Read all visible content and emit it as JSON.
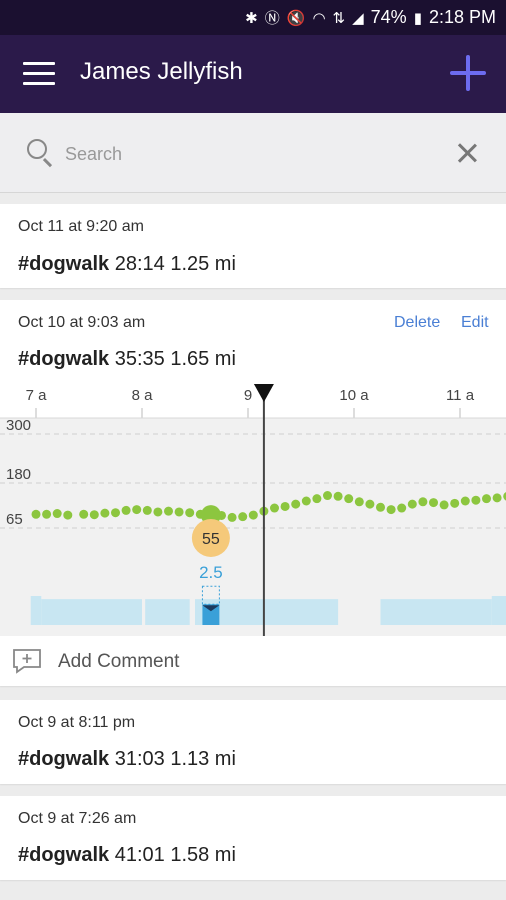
{
  "status_bar": {
    "icons": [
      "bluetooth-icon",
      "nfc-icon",
      "mute-icon",
      "wifi-icon",
      "lte-icon",
      "signal-icon"
    ],
    "battery": "74%",
    "time": "2:18 PM"
  },
  "app_bar": {
    "title": "James Jellyfish"
  },
  "search": {
    "placeholder": "Search"
  },
  "entries": [
    {
      "date": "Oct 11 at 9:20 am",
      "tag": "#dogwalk",
      "duration": "28:14",
      "distance": "1.25 mi"
    },
    {
      "date": "Oct 10 at 9:03 am",
      "tag": "#dogwalk",
      "duration": "35:35",
      "distance": "1.65 mi",
      "delete_label": "Delete",
      "edit_label": "Edit",
      "add_comment_label": "Add Comment"
    },
    {
      "date": "Oct 9 at 8:11 pm",
      "tag": "#dogwalk",
      "duration": "31:03",
      "distance": "1.13 mi"
    },
    {
      "date": "Oct 9 at 7:26 am",
      "tag": "#dogwalk",
      "duration": "41:01",
      "distance": "1.58 mi"
    }
  ],
  "chart_data": {
    "type": "scatter",
    "x_tick_labels": [
      "7 a",
      "8 a",
      "9",
      "10 a",
      "11 a"
    ],
    "y_tick_labels": [
      "300",
      "180",
      "65"
    ],
    "y_ticks": [
      300,
      180,
      65
    ],
    "grid": true,
    "colors": {
      "points": "#8cc63f",
      "bars": "#c8e6f2",
      "highlight_bar": "#3aa0d8",
      "marker_badge": "#f5c97a",
      "cursor": "#444444"
    },
    "hr_series": [
      {
        "t": 7.0,
        "v": 100
      },
      {
        "t": 7.1,
        "v": 100
      },
      {
        "t": 7.2,
        "v": 102
      },
      {
        "t": 7.3,
        "v": 98
      },
      {
        "t": 7.45,
        "v": 100
      },
      {
        "t": 7.55,
        "v": 99
      },
      {
        "t": 7.65,
        "v": 103
      },
      {
        "t": 7.75,
        "v": 104
      },
      {
        "t": 7.85,
        "v": 110
      },
      {
        "t": 7.95,
        "v": 112
      },
      {
        "t": 8.05,
        "v": 110
      },
      {
        "t": 8.15,
        "v": 106
      },
      {
        "t": 8.25,
        "v": 108
      },
      {
        "t": 8.35,
        "v": 106
      },
      {
        "t": 8.45,
        "v": 104
      },
      {
        "t": 8.55,
        "v": 100
      },
      {
        "t": 8.65,
        "v": 98
      },
      {
        "t": 8.75,
        "v": 97
      },
      {
        "t": 8.85,
        "v": 92
      },
      {
        "t": 8.95,
        "v": 94
      },
      {
        "t": 9.05,
        "v": 98
      },
      {
        "t": 9.15,
        "v": 108
      },
      {
        "t": 9.25,
        "v": 116
      },
      {
        "t": 9.35,
        "v": 120
      },
      {
        "t": 9.45,
        "v": 126
      },
      {
        "t": 9.55,
        "v": 134
      },
      {
        "t": 9.65,
        "v": 140
      },
      {
        "t": 9.75,
        "v": 148
      },
      {
        "t": 9.85,
        "v": 146
      },
      {
        "t": 9.95,
        "v": 140
      },
      {
        "t": 10.05,
        "v": 132
      },
      {
        "t": 10.15,
        "v": 126
      },
      {
        "t": 10.25,
        "v": 118
      },
      {
        "t": 10.35,
        "v": 112
      },
      {
        "t": 10.45,
        "v": 116
      },
      {
        "t": 10.55,
        "v": 126
      },
      {
        "t": 10.65,
        "v": 132
      },
      {
        "t": 10.75,
        "v": 130
      },
      {
        "t": 10.85,
        "v": 124
      },
      {
        "t": 10.95,
        "v": 128
      },
      {
        "t": 11.05,
        "v": 134
      },
      {
        "t": 11.15,
        "v": 136
      },
      {
        "t": 11.25,
        "v": 140
      },
      {
        "t": 11.35,
        "v": 142
      },
      {
        "t": 11.45,
        "v": 146
      },
      {
        "t": 11.55,
        "v": 144
      },
      {
        "t": 11.65,
        "v": 142
      },
      {
        "t": 11.75,
        "v": 140
      },
      {
        "t": 11.85,
        "v": 138
      },
      {
        "t": 11.95,
        "v": 134
      }
    ],
    "marker": {
      "t": 8.65,
      "hr_label": "55",
      "value_label": "2.5"
    },
    "cursor_t": 9.15,
    "activity_bars": [
      {
        "start": 6.95,
        "end": 7.05,
        "level": 0.28
      },
      {
        "start": 7.05,
        "end": 8.0,
        "level": 0.25
      },
      {
        "start": 8.03,
        "end": 8.45,
        "level": 0.25
      },
      {
        "start": 8.5,
        "end": 9.85,
        "level": 0.25
      },
      {
        "start": 10.25,
        "end": 11.3,
        "level": 0.25
      },
      {
        "start": 11.3,
        "end": 11.95,
        "level": 0.28
      }
    ],
    "highlight_bar": {
      "start": 8.57,
      "end": 8.73,
      "level": 0.2
    }
  }
}
